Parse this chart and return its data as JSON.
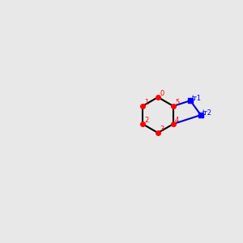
{
  "bg_color": "#e8e8e8",
  "bond_color": "#000000",
  "bond_color_blue": "#0000cc",
  "bond_color_teal": "#2d8080",
  "bond_lw": 1.5,
  "font_size_atom": 8.5,
  "font_size_small": 7.5
}
